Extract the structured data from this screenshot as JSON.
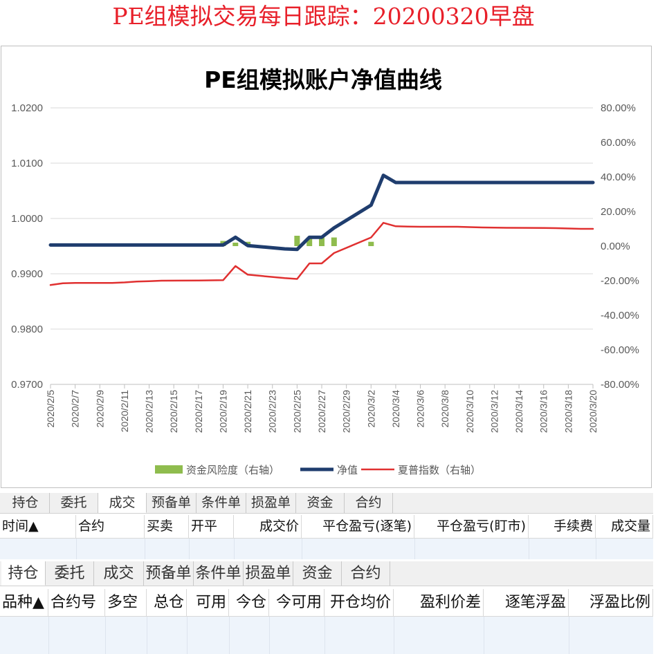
{
  "page_title": "PE组模拟交易每日跟踪：20200320早盘",
  "chart_data": {
    "type": "line",
    "title": "PE组模拟账户净值曲线",
    "x": [
      "2020/2/5",
      "2020/2/6",
      "2020/2/7",
      "2020/2/10",
      "2020/2/11",
      "2020/2/12",
      "2020/2/13",
      "2020/2/14",
      "2020/2/17",
      "2020/2/18",
      "2020/2/19",
      "2020/2/20",
      "2020/2/21",
      "2020/2/24",
      "2020/2/25",
      "2020/2/26",
      "2020/2/27",
      "2020/2/28",
      "2020/3/2",
      "2020/3/3",
      "2020/3/4",
      "2020/3/5",
      "2020/3/6",
      "2020/3/9",
      "2020/3/10",
      "2020/3/11",
      "2020/3/12",
      "2020/3/13",
      "2020/3/16",
      "2020/3/17",
      "2020/3/18",
      "2020/3/19",
      "2020/3/20"
    ],
    "x_tick_labels": [
      "2020/2/5",
      "2020/2/7",
      "2020/2/9",
      "2020/2/11",
      "2020/2/13",
      "2020/2/15",
      "2020/2/17",
      "2020/2/19",
      "2020/2/21",
      "2020/2/23",
      "2020/2/25",
      "2020/2/27",
      "2020/2/29",
      "2020/3/2",
      "2020/3/4",
      "2020/3/6",
      "2020/3/8",
      "2020/3/10",
      "2020/3/12",
      "2020/3/14",
      "2020/3/16",
      "2020/3/18",
      "2020/3/20"
    ],
    "y_left": {
      "min": 0.97,
      "max": 1.02,
      "ticks": [
        "0.9700",
        "0.9800",
        "0.9900",
        "1.0000",
        "1.0100",
        "1.0200"
      ]
    },
    "y_right": {
      "min": -0.8,
      "max": 0.8,
      "ticks": [
        "-80.00%",
        "-60.00%",
        "-40.00%",
        "-20.00%",
        "0.00%",
        "20.00%",
        "40.00%",
        "60.00%",
        "80.00%"
      ]
    },
    "series": [
      {
        "name": "资金风险度（右轴）",
        "type": "bar",
        "axis": "right",
        "color": "#8fbc4e",
        "values": [
          0,
          0,
          0,
          0,
          0,
          0,
          0,
          0,
          0,
          0,
          0.03,
          0.02,
          0.025,
          0,
          0.06,
          0.05,
          0.05,
          0.05,
          0.025,
          0,
          0,
          0,
          0,
          0,
          0,
          0,
          0,
          0,
          0,
          0,
          0,
          0,
          0
        ]
      },
      {
        "name": "净值",
        "type": "line",
        "axis": "left",
        "color": "#1f3d6e",
        "width": 5,
        "values": [
          0.9952,
          0.9952,
          0.9952,
          0.9952,
          0.9952,
          0.9952,
          0.9952,
          0.9952,
          0.9952,
          0.9952,
          0.9952,
          0.9966,
          0.9951,
          0.9945,
          0.9944,
          0.9966,
          0.9966,
          0.9983,
          1.0024,
          1.0078,
          1.0065,
          1.0065,
          1.0065,
          1.0065,
          1.0065,
          1.0065,
          1.0065,
          1.0065,
          1.0065,
          1.0065,
          1.0065,
          1.0065,
          1.0065
        ]
      },
      {
        "name": "夏普指数（右轴）",
        "type": "line",
        "axis": "right",
        "color": "#e03030",
        "width": 2.5,
        "values": [
          -0.225,
          -0.215,
          -0.213,
          -0.213,
          -0.21,
          -0.205,
          -0.203,
          -0.2,
          -0.199,
          -0.198,
          -0.197,
          -0.115,
          -0.165,
          -0.185,
          -0.19,
          -0.1,
          -0.1,
          -0.04,
          0.05,
          0.135,
          0.115,
          0.113,
          0.112,
          0.112,
          0.11,
          0.108,
          0.107,
          0.106,
          0.105,
          0.104,
          0.102,
          0.1,
          0.1
        ]
      }
    ],
    "legend": {
      "position": "bottom",
      "items": [
        "资金风险度（右轴）",
        "净值",
        "夏普指数（右轴）"
      ]
    },
    "grid": true
  },
  "trade_panel": {
    "tabs": [
      "持仓",
      "委托",
      "成交",
      "预备单",
      "条件单",
      "损盈单",
      "资金",
      "合约"
    ],
    "active_tab": "成交",
    "columns": [
      "时间▲",
      "合约",
      "买卖",
      "开平",
      "成交价",
      "平仓盈亏(逐笔)",
      "平仓盈亏(盯市)",
      "手续费",
      "成交量"
    ]
  },
  "position_panel": {
    "tabs": [
      "持仓",
      "委托",
      "成交",
      "预备单",
      "条件单",
      "损盈单",
      "资金",
      "合约"
    ],
    "active_tab": "持仓",
    "columns": [
      "品种▲",
      "合约号",
      "多空",
      "总仓",
      "可用",
      "今仓",
      "今可用",
      "开仓均价",
      "盈利价差",
      "逐笔浮盈",
      "浮盈比例"
    ]
  }
}
